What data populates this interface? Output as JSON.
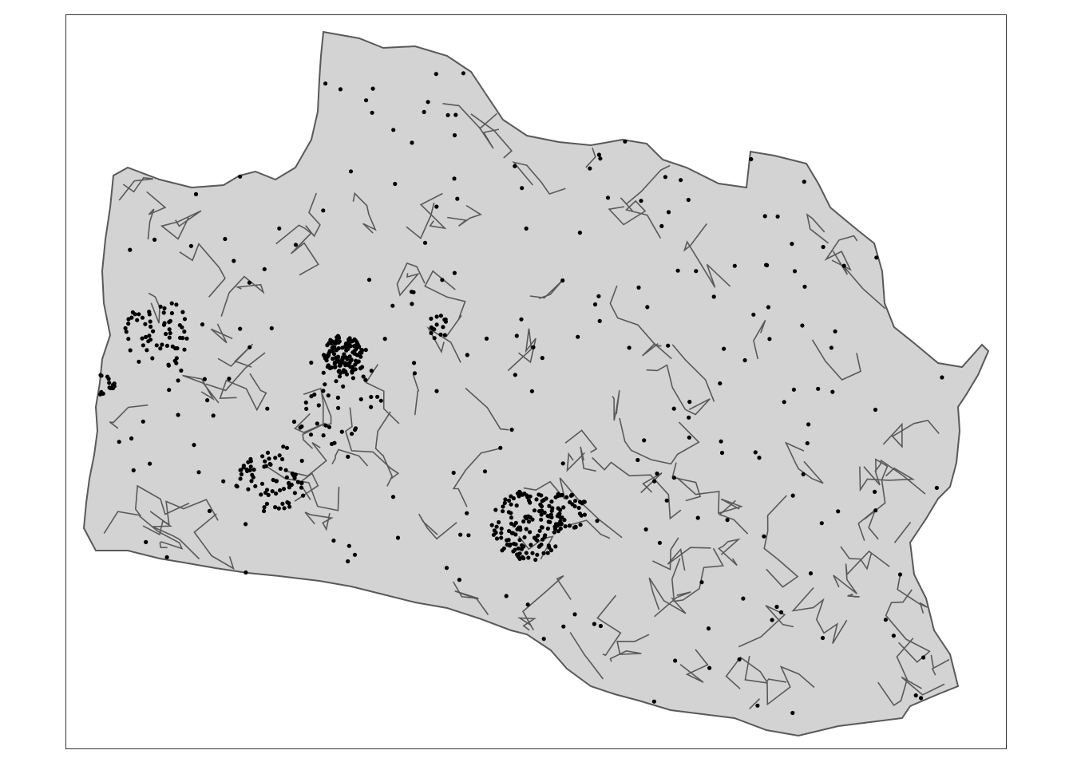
{
  "map": {
    "region": "",
    "fill_color": "#d3d3d3",
    "border_color": "#595959",
    "point_color": "#000000",
    "frame_color": "#333333",
    "legend": "none",
    "grid": false,
    "layers": [
      "district-polygons",
      "point-locations"
    ]
  }
}
